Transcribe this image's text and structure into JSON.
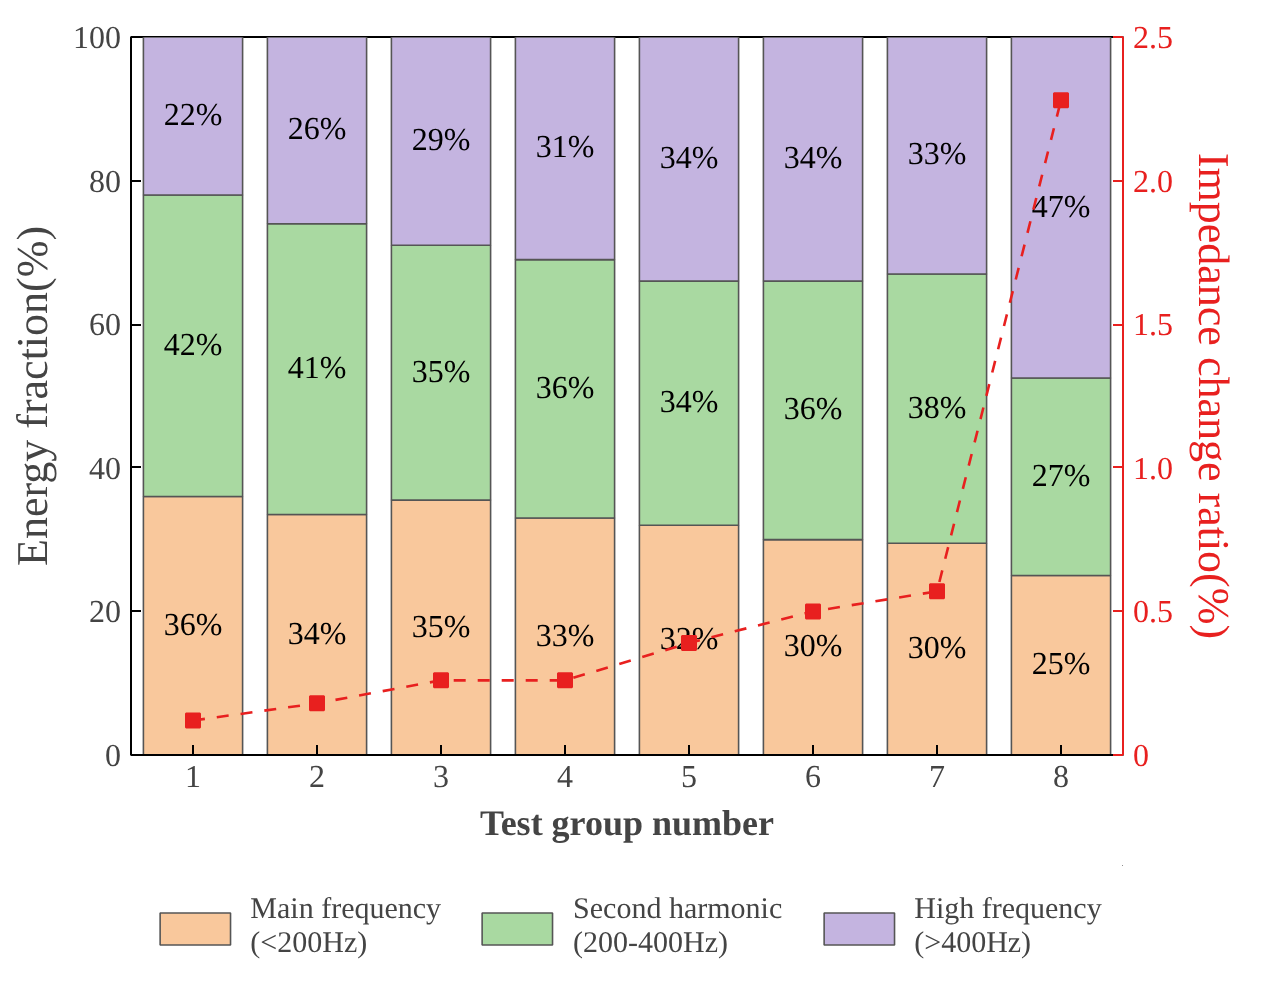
{
  "chart_data": {
    "type": "bar",
    "stacked": true,
    "xlabel": "Test group number",
    "ylabel": "Energy fraction(%)",
    "y2label": "Impedance change ratio(%)",
    "categories": [
      "1",
      "2",
      "3",
      "4",
      "5",
      "6",
      "7",
      "8"
    ],
    "ylim": [
      0,
      100
    ],
    "yticks": [
      0,
      20,
      40,
      60,
      80,
      100
    ],
    "y2lim": [
      0,
      2.5
    ],
    "y2ticks": [
      0,
      0.5,
      {
        "value": 1,
        "label": "1.0"
      },
      1.5,
      {
        "value": 2,
        "label": "2.0"
      },
      2.5
    ],
    "grid": false,
    "legend": "bottom",
    "series": [
      {
        "name": "Main frequency\n(<200Hz)",
        "color": "#f9c89c",
        "values": [
          36,
          33.5,
          35.5,
          33,
          32,
          30,
          29.5,
          25
        ],
        "value_labels": [
          "36%",
          "34%",
          "35%",
          "33%",
          "32%",
          "30%",
          "30%",
          "25%"
        ]
      },
      {
        "name": "Second harmonic\n(200-400Hz)",
        "color": "#a9d9a1",
        "values": [
          42,
          40.5,
          35.5,
          36,
          34,
          36,
          37.5,
          27.5
        ],
        "value_labels": [
          "42%",
          "41%",
          "35%",
          "36%",
          "34%",
          "36%",
          "38%",
          "27%"
        ]
      },
      {
        "name": "High frequency\n(>400Hz)",
        "color": "#c4b4e0",
        "values": [
          22,
          26,
          29,
          31,
          34,
          34,
          33,
          47.5
        ],
        "value_labels": [
          "22%",
          "26%",
          "29%",
          "31%",
          "34%",
          "34%",
          "33%",
          "47%"
        ]
      },
      {
        "type": "line",
        "axis": "y2",
        "color": "#e8201f",
        "marker": "square",
        "line_style": "dashed",
        "values": [
          0.12,
          0.18,
          0.26,
          0.26,
          0.39,
          0.5,
          0.57,
          2.28
        ]
      }
    ]
  }
}
